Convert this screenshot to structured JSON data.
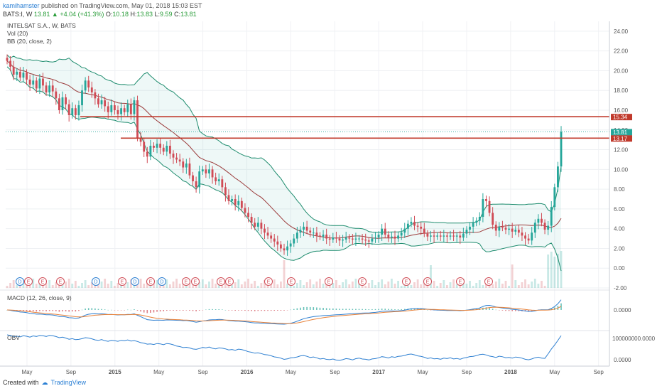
{
  "header": {
    "author": "kamihamster",
    "published": "published on TradingView.com, May 01, 2018 15:03 EST",
    "symbol": "BATS:I, W",
    "last": "13.81",
    "change": "+4.04 (+41.3%)",
    "open_label": "O:",
    "open": "10.18",
    "high_label": "H:",
    "high": "13.83",
    "low_label": "L:",
    "low": "9.59",
    "close_label": "C:",
    "close": "13.81"
  },
  "legend": {
    "name": "INTELSAT S.A., W, BATS",
    "vol": "Vol (20)",
    "bb": "BB (20, close, 2)",
    "macd": "MACD (12, 26, close, 9)",
    "obv": "OBV"
  },
  "footer": {
    "created": "Created with",
    "brand": "TradingView"
  },
  "colors": {
    "up": "#26a69a",
    "down": "#d04b55",
    "bb": "#1e8c6e",
    "basis": "#9b3b3b",
    "level": "#c0392b",
    "macd": "#2d7fd1",
    "signal": "#e8823a",
    "obv": "#2d7fd1"
  },
  "chart_data": {
    "type": "candlestick",
    "x_ticks": [
      "May",
      "Sep",
      "2015",
      "May",
      "Sep",
      "2016",
      "May",
      "Sep",
      "2017",
      "May",
      "Sep",
      "2018",
      "May",
      "Sep"
    ],
    "y_ticks": [
      "24.00",
      "22.00",
      "20.00",
      "18.00",
      "16.00",
      "14.00",
      "12.00",
      "10.00",
      "8.00",
      "6.00",
      "4.00",
      "2.00",
      "0.00",
      "-2.00"
    ],
    "ylim": [
      -2,
      25
    ],
    "price_tags": [
      {
        "label": "15.34",
        "value": 15.34,
        "color": "#c0392b"
      },
      {
        "label": "13.81",
        "value": 13.81,
        "color": "#26a69a"
      },
      {
        "label": "13.17",
        "value": 13.17,
        "color": "#c0392b"
      }
    ],
    "horizontal_levels": [
      15.34,
      13.17
    ],
    "events": [
      "D",
      "E",
      "E",
      "E",
      "D",
      "E",
      "D",
      "E",
      "D",
      "E",
      "E",
      "E",
      "E",
      "E",
      "E",
      "E",
      "E",
      "E",
      "E",
      "E",
      "E"
    ],
    "macd_ticks": [
      "0.0000"
    ],
    "obv_ticks": [
      "100000000.0000",
      "0.0000"
    ],
    "close": [
      21.0,
      20.4,
      19.6,
      19.9,
      19.3,
      19.8,
      19.1,
      18.6,
      19.0,
      18.2,
      19.2,
      18.5,
      17.8,
      18.5,
      17.9,
      17.2,
      16.0,
      17.3,
      16.6,
      15.5,
      16.2,
      15.5,
      16.5,
      18.0,
      19.0,
      18.3,
      17.8,
      17.2,
      16.6,
      17.0,
      16.4,
      15.8,
      16.5,
      16.0,
      15.6,
      16.2,
      15.8,
      16.6,
      15.6,
      17.0,
      13.2,
      12.8,
      11.8,
      11.3,
      12.4,
      12.2,
      12.6,
      12.2,
      11.8,
      12.4,
      11.6,
      11.2,
      11.0,
      10.8,
      10.2,
      10.6,
      9.4,
      8.8,
      8.2,
      9.8,
      10.0,
      9.6,
      10.0,
      9.2,
      8.8,
      9.0,
      8.2,
      7.4,
      6.8,
      7.0,
      6.4,
      6.8,
      6.1,
      5.6,
      5.2,
      4.6,
      4.2,
      4.6,
      4.0,
      3.6,
      3.3,
      3.0,
      2.7,
      2.4,
      2.0,
      1.8,
      2.2,
      2.5,
      3.0,
      3.6,
      3.9,
      4.2,
      3.8,
      3.6,
      3.6,
      3.3,
      3.2,
      3.4,
      3.0,
      2.9,
      3.1,
      3.0,
      2.8,
      2.9,
      3.1,
      3.0,
      2.9,
      3.0,
      3.0,
      2.9,
      2.8,
      2.7,
      3.0,
      3.1,
      3.4,
      4.0,
      3.4,
      3.1,
      3.2,
      3.0,
      3.3,
      3.6,
      4.0,
      4.5,
      4.7,
      4.3,
      4.2,
      4.0,
      3.5,
      3.2,
      3.3,
      3.2,
      3.3,
      3.2,
      3.3,
      3.2,
      3.3,
      3.2,
      3.3,
      3.1,
      3.5,
      3.9,
      4.2,
      4.6,
      4.8,
      5.2,
      7.0,
      6.8,
      5.6,
      4.4,
      3.8,
      4.2,
      4.1,
      3.9,
      4.0,
      3.7,
      3.9,
      3.6,
      3.3,
      3.0,
      2.8,
      3.6,
      4.6,
      5.0,
      4.6,
      3.9,
      4.3,
      6.2,
      8.2,
      10.3,
      13.81
    ]
  }
}
